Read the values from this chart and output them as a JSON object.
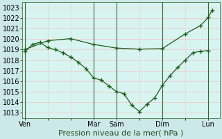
{
  "background_color": "#cce8e8",
  "plot_bg_color": "#d8f4f0",
  "grid_color": "#f0c8c8",
  "line_color": "#1a5c1a",
  "marker_color": "#1a5c1a",
  "xlabel": "Pression niveau de la mer( hPa )",
  "xlabel_fontsize": 8,
  "tick_fontsize": 7,
  "ylim": [
    1012.5,
    1023.5
  ],
  "yticks": [
    1013,
    1014,
    1015,
    1016,
    1017,
    1018,
    1019,
    1020,
    1021,
    1022,
    1023
  ],
  "day_labels": [
    "Ven",
    "Mar",
    "Sam",
    "Dim",
    "Lun"
  ],
  "day_positions": [
    0,
    9,
    12,
    18,
    24
  ],
  "xlim": [
    -0.3,
    25.5
  ],
  "line1_x": [
    0,
    1,
    2,
    3,
    4,
    5,
    6,
    7,
    8,
    9,
    10,
    11,
    12,
    13,
    14,
    15,
    16,
    17,
    18,
    19,
    20,
    21,
    22,
    23,
    24
  ],
  "line1_y": [
    1018.8,
    1019.5,
    1019.7,
    1019.2,
    1019.0,
    1018.7,
    1018.3,
    1017.8,
    1017.2,
    1016.3,
    1016.1,
    1015.55,
    1015.0,
    1014.8,
    1013.7,
    1013.1,
    1013.8,
    1014.4,
    1015.6,
    1016.5,
    1017.3,
    1018.0,
    1018.7,
    1018.85,
    1018.9
  ],
  "line2_x": [
    0,
    3,
    6,
    9,
    12,
    15,
    18,
    21,
    23,
    24,
    24.5
  ],
  "line2_y": [
    1019.0,
    1019.85,
    1020.05,
    1019.5,
    1019.15,
    1019.05,
    1019.1,
    1020.5,
    1021.3,
    1022.05,
    1022.75
  ],
  "vline_x": [
    0,
    9,
    12,
    18,
    24
  ],
  "vline_color": "#336633",
  "vline_lw": 0.8
}
